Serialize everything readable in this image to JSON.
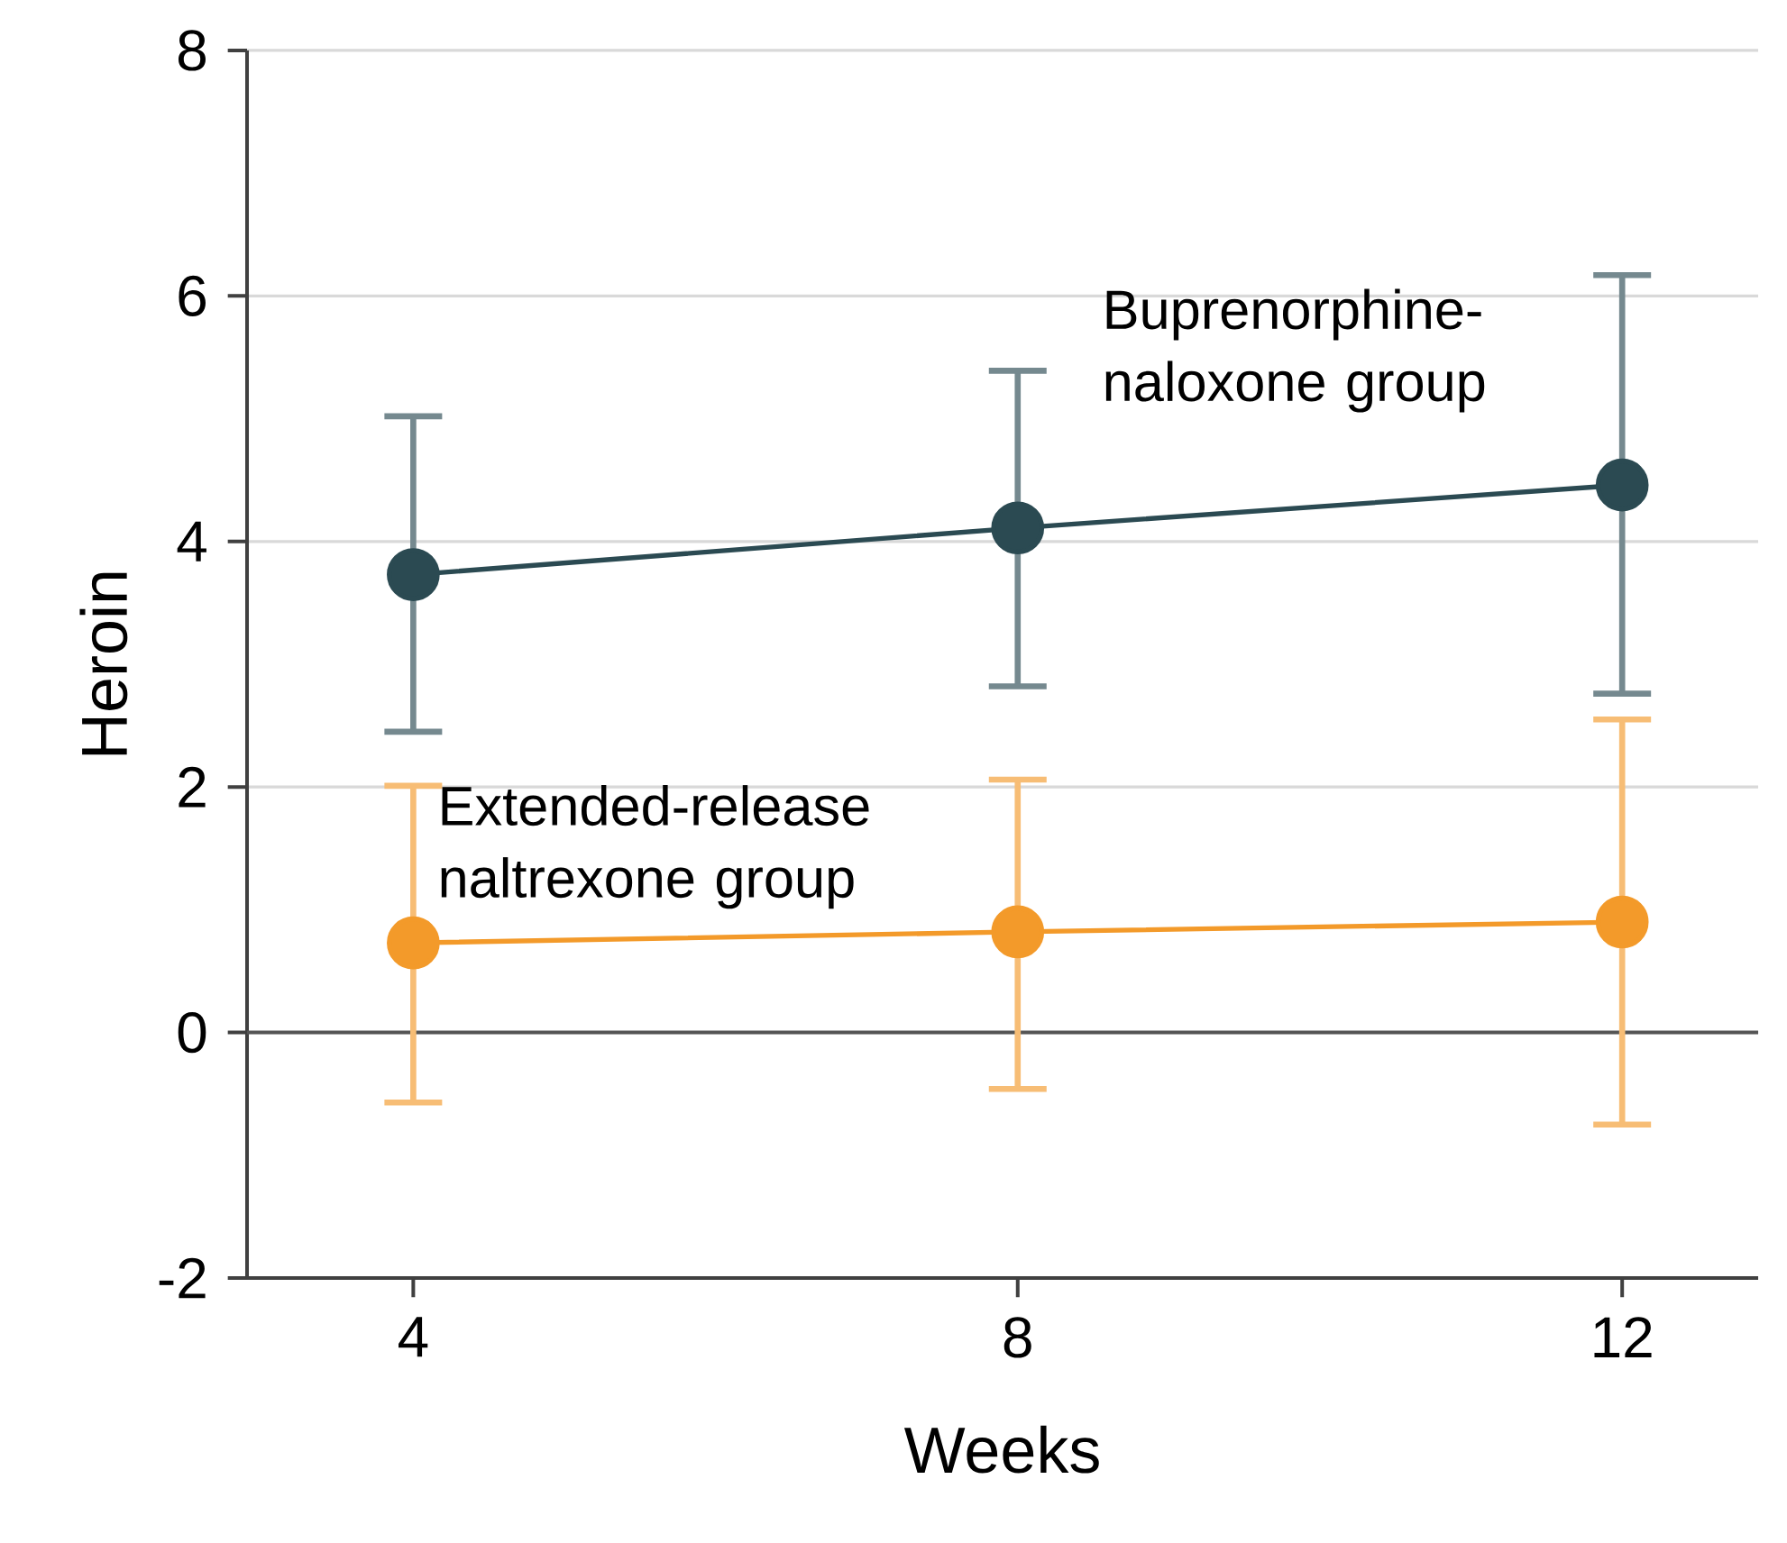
{
  "chart_data": {
    "type": "line",
    "xlabel": "Weeks",
    "ylabel": "Heroin",
    "x": [
      4,
      8,
      12
    ],
    "xlim": [
      2.9,
      12.9
    ],
    "ylim": [
      -2,
      8
    ],
    "xticks": [
      4,
      8,
      12
    ],
    "yticks": [
      -2,
      0,
      2,
      4,
      6,
      8
    ],
    "grid": "y",
    "marker": "circle",
    "line_style": "solid",
    "ref_lines": [
      {
        "axis": "y",
        "value": 0,
        "color": "#555555"
      }
    ],
    "series": [
      {
        "name": "Buprenorphine-naloxone group",
        "color": "#2b4a52",
        "values": [
          3.73,
          4.11,
          4.46
        ],
        "errors": [
          [
            2.45,
            5.02
          ],
          [
            2.82,
            5.39
          ],
          [
            2.76,
            6.17
          ]
        ]
      },
      {
        "name": "Extended-release naltrexone group",
        "color": "#f39a2a",
        "values": [
          0.73,
          0.82,
          0.9
        ],
        "errors": [
          [
            -0.57,
            2.01
          ],
          [
            -0.46,
            2.06
          ],
          [
            -0.75,
            2.55
          ]
        ]
      }
    ]
  }
}
